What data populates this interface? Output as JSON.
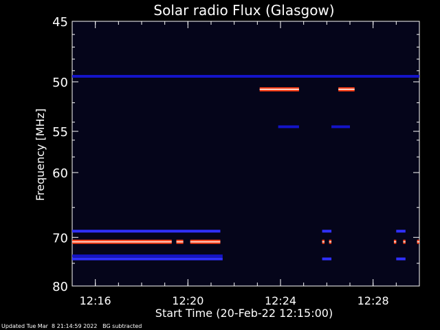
{
  "chart_data": {
    "type": "heatmap",
    "title": "Solar radio Flux (Glasgow)",
    "xlabel": "Start Time (20-Feb-22 12:15:00)",
    "ylabel": "Frequency [MHz]",
    "x_unit": "minutes after 12:15:00",
    "xlim": [
      0,
      15
    ],
    "ylim": [
      45,
      80
    ],
    "y_ticks": [
      "45",
      "50",
      "55",
      "60",
      "70",
      "80"
    ],
    "x_ticks": [
      {
        "label": "12:16",
        "value": 1
      },
      {
        "label": "12:20",
        "value": 5
      },
      {
        "label": "12:24",
        "value": 9
      },
      {
        "label": "12:28",
        "value": 13
      }
    ],
    "emission_bands": [
      {
        "freq_mhz": 49.5,
        "intensity": "low",
        "segments": [
          [
            0.0,
            15.0
          ]
        ]
      },
      {
        "freq_mhz": 50.7,
        "intensity": "high",
        "segments": [
          [
            8.1,
            9.8
          ],
          [
            11.5,
            12.2
          ]
        ]
      },
      {
        "freq_mhz": 54.5,
        "intensity": "low",
        "segments": [
          [
            8.9,
            9.8
          ],
          [
            11.2,
            12.0
          ]
        ]
      },
      {
        "freq_mhz": 68.9,
        "intensity": "medium",
        "segments": [
          [
            0.0,
            6.4
          ],
          [
            10.8,
            11.2
          ],
          [
            14.0,
            14.4
          ]
        ]
      },
      {
        "freq_mhz": 70.8,
        "intensity": "high",
        "segments": [
          [
            0.0,
            4.3
          ],
          [
            4.5,
            4.8
          ],
          [
            5.1,
            6.4
          ],
          [
            10.8,
            10.9
          ],
          [
            11.1,
            11.2
          ],
          [
            13.9,
            14.0
          ],
          [
            14.3,
            14.4
          ],
          [
            14.9,
            15.0
          ]
        ]
      },
      {
        "freq_mhz": 73.5,
        "intensity": "low",
        "segments": [
          [
            0.0,
            6.5
          ]
        ]
      },
      {
        "freq_mhz": 74.1,
        "intensity": "medium",
        "segments": [
          [
            0.0,
            6.5
          ],
          [
            10.8,
            11.2
          ],
          [
            14.0,
            14.4
          ]
        ]
      }
    ]
  },
  "footer": {
    "updated": "Updated Tue Mar  8 21:14:59 2022",
    "note": "BG subtracted"
  },
  "colors": {
    "background": "#000000",
    "plot_background": "#05051a",
    "low": "#1414c8",
    "medium": "#3030ff",
    "high": "#ff3c14",
    "high_core": "#ffd2c8",
    "orange": "#ff8a1e"
  }
}
